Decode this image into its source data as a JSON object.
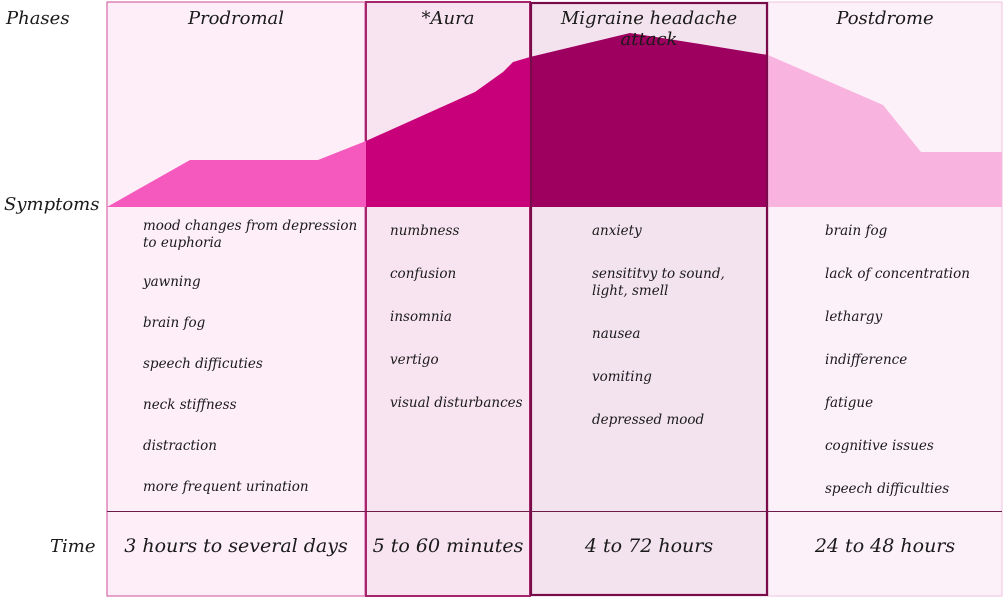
{
  "row_labels": {
    "phases": "Phases",
    "symptoms": "Symptoms",
    "time": "Time"
  },
  "phases": [
    {
      "name": "Prodromal",
      "time": "3 hours to several days",
      "symptoms": [
        "mood changes from depression to euphoria",
        "yawning",
        "brain fog",
        "speech difficuties",
        "neck stiffness",
        "distraction",
        "more frequent urination"
      ]
    },
    {
      "name": "*Aura",
      "time": "5 to 60 minutes",
      "symptoms": [
        "numbness",
        "confusion",
        "insomnia",
        "vertigo",
        "visual disturbances"
      ]
    },
    {
      "name": "Migraine headache attack",
      "time": "4 to 72 hours",
      "symptoms": [
        "anxiety",
        "sensititvy to sound, light, smell",
        "nausea",
        "vomiting",
        "depressed mood"
      ]
    },
    {
      "name": "Postdrome",
      "time": "24 to 48 hours",
      "symptoms": [
        "brain fog",
        "lack of concentration",
        "lethargy",
        "indifference",
        "fatigue",
        "cognitive issues",
        "speech difficulties"
      ]
    }
  ],
  "colors": {
    "prodromal_curve": "#f559bd",
    "aura_curve": "#c8007a",
    "attack_curve": "#9e0060",
    "postdrome_curve": "#f9b3df",
    "prodromal_bg": "#fdeef8",
    "aura_bg": "#f8e4f0",
    "attack_bg": "#f3e3ee",
    "postdrome_bg": "#fdf1f9"
  }
}
